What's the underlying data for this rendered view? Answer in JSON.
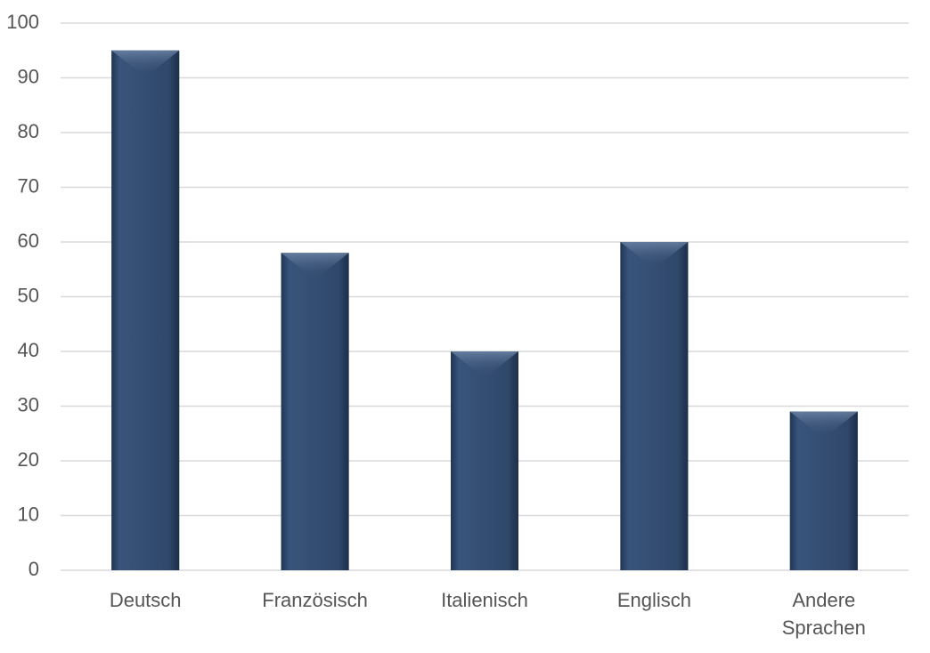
{
  "chart_data": {
    "type": "bar",
    "categories": [
      "Deutsch",
      "Französisch",
      "Italienisch",
      "Englisch",
      "Andere Sprachen"
    ],
    "values": [
      95,
      58,
      40,
      60,
      29
    ],
    "color": "#31496d",
    "ylim": [
      0,
      100
    ],
    "yticks": [
      0,
      10,
      20,
      30,
      40,
      50,
      60,
      70,
      80,
      90,
      100
    ],
    "grid": true
  }
}
